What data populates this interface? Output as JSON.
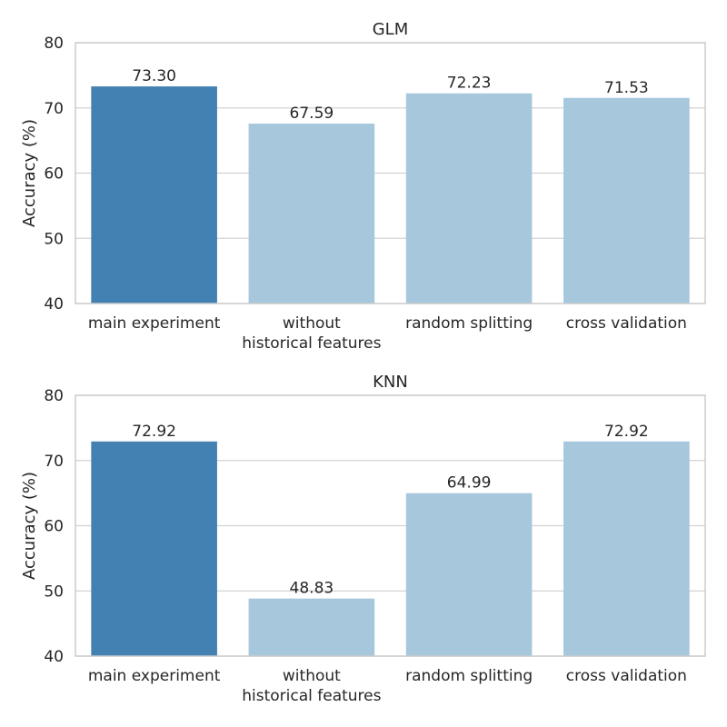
{
  "chart_data": [
    {
      "type": "bar",
      "title": "GLM",
      "ylabel": "Accuracy (%)",
      "xlabel": "",
      "ylim": [
        40,
        80
      ],
      "yticks": [
        40,
        50,
        60,
        70,
        80
      ],
      "categories": [
        "main experiment",
        "without\nhistorical features",
        "random splitting",
        "cross validation"
      ],
      "values": [
        73.3,
        67.59,
        72.23,
        71.53
      ],
      "value_labels": [
        "73.30",
        "67.59",
        "72.23",
        "71.53"
      ],
      "colors": [
        "#4381b2",
        "#a6c7dc",
        "#a6c7dc",
        "#a6c7dc"
      ],
      "grid": "horizontal",
      "legend": "none"
    },
    {
      "type": "bar",
      "title": "KNN",
      "ylabel": "Accuracy (%)",
      "xlabel": "",
      "ylim": [
        40,
        80
      ],
      "yticks": [
        40,
        50,
        60,
        70,
        80
      ],
      "categories": [
        "main experiment",
        "without\nhistorical features",
        "random splitting",
        "cross validation"
      ],
      "values": [
        72.92,
        48.83,
        64.99,
        72.92
      ],
      "value_labels": [
        "72.92",
        "48.83",
        "64.99",
        "72.92"
      ],
      "colors": [
        "#4381b2",
        "#a6c7dc",
        "#a6c7dc",
        "#a6c7dc"
      ],
      "grid": "horizontal",
      "legend": "none"
    }
  ]
}
